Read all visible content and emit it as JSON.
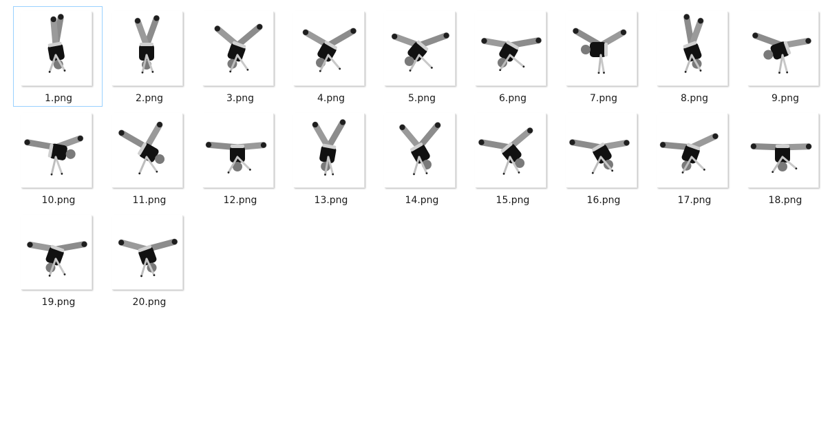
{
  "view": {
    "selected_index": 0
  },
  "files": [
    {
      "name": "1.png",
      "icon": "cartwheel-frame-thumbnail"
    },
    {
      "name": "2.png",
      "icon": "cartwheel-frame-thumbnail"
    },
    {
      "name": "3.png",
      "icon": "cartwheel-frame-thumbnail"
    },
    {
      "name": "4.png",
      "icon": "cartwheel-frame-thumbnail"
    },
    {
      "name": "5.png",
      "icon": "cartwheel-frame-thumbnail"
    },
    {
      "name": "6.png",
      "icon": "cartwheel-frame-thumbnail"
    },
    {
      "name": "7.png",
      "icon": "cartwheel-frame-thumbnail"
    },
    {
      "name": "8.png",
      "icon": "cartwheel-frame-thumbnail"
    },
    {
      "name": "9.png",
      "icon": "cartwheel-frame-thumbnail"
    },
    {
      "name": "10.png",
      "icon": "cartwheel-frame-thumbnail"
    },
    {
      "name": "11.png",
      "icon": "cartwheel-frame-thumbnail"
    },
    {
      "name": "12.png",
      "icon": "cartwheel-frame-thumbnail"
    },
    {
      "name": "13.png",
      "icon": "cartwheel-frame-thumbnail"
    },
    {
      "name": "14.png",
      "icon": "cartwheel-frame-thumbnail"
    },
    {
      "name": "15.png",
      "icon": "cartwheel-frame-thumbnail"
    },
    {
      "name": "16.png",
      "icon": "cartwheel-frame-thumbnail"
    },
    {
      "name": "17.png",
      "icon": "cartwheel-frame-thumbnail"
    },
    {
      "name": "18.png",
      "icon": "cartwheel-frame-thumbnail"
    },
    {
      "name": "19.png",
      "icon": "cartwheel-frame-thumbnail"
    },
    {
      "name": "20.png",
      "icon": "cartwheel-frame-thumbnail"
    }
  ]
}
